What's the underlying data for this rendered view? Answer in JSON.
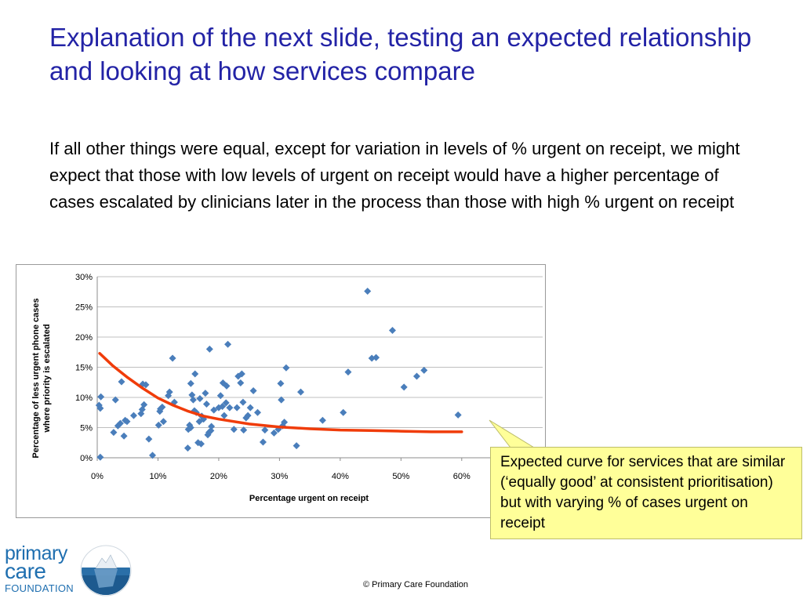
{
  "slide": {
    "title": "Explanation of the next slide, testing an expected relationship and looking at how services compare",
    "body": "If all other things were equal, except for variation in levels of % urgent on receipt, we might expect that those with low levels of urgent on receipt would have a higher percentage of cases escalated by clinicians later in the process than those with high % urgent on receipt",
    "callout": "Expected curve for services that are similar (‘equally good’ at consistent prioritisation) but with varying % of cases urgent on receipt",
    "copyright": "© Primary Care Foundation",
    "logo": {
      "line1": "primary",
      "line2": "care",
      "line3": "FOUNDATION",
      "colors": {
        "text": "#1f6fb0",
        "sea": "#2a6fa8"
      }
    },
    "colors": {
      "title": "#2323a6",
      "callout_bg": "#ffff99",
      "marker": "#4a7ebb",
      "curve": "#f03c0a"
    }
  },
  "chart_data": {
    "type": "scatter",
    "xlabel": "Percentage urgent on receipt",
    "ylabel": "Percentage of less urgent phone cases where priority is escalated",
    "xlim": [
      0,
      0.6
    ],
    "ylim": [
      0,
      0.3
    ],
    "x_ticks": [
      0,
      0.1,
      0.2,
      0.3,
      0.4,
      0.5,
      0.6
    ],
    "x_tick_labels": [
      "0%",
      "10%",
      "20%",
      "30%",
      "40%",
      "50%",
      "60%"
    ],
    "y_ticks": [
      0,
      0.05,
      0.1,
      0.15,
      0.2,
      0.25,
      0.3
    ],
    "y_tick_labels": [
      "0%",
      "5%",
      "10%",
      "15%",
      "20%",
      "25%",
      "30%"
    ],
    "grid": "horizontal",
    "legend": "none",
    "series": [
      {
        "type": "scatter",
        "marker": "diamond",
        "color": "#4a7ebb",
        "points": [
          [
            0.003,
            0.087
          ],
          [
            0.005,
            0.082
          ],
          [
            0.006,
            0.101
          ],
          [
            0.005,
            0.001
          ],
          [
            0.027,
            0.042
          ],
          [
            0.03,
            0.096
          ],
          [
            0.034,
            0.053
          ],
          [
            0.038,
            0.057
          ],
          [
            0.04,
            0.126
          ],
          [
            0.044,
            0.036
          ],
          [
            0.046,
            0.062
          ],
          [
            0.049,
            0.06
          ],
          [
            0.06,
            0.07
          ],
          [
            0.072,
            0.073
          ],
          [
            0.074,
            0.08
          ],
          [
            0.075,
            0.122
          ],
          [
            0.077,
            0.088
          ],
          [
            0.08,
            0.121
          ],
          [
            0.085,
            0.031
          ],
          [
            0.091,
            0.004
          ],
          [
            0.101,
            0.054
          ],
          [
            0.103,
            0.077
          ],
          [
            0.104,
            0.081
          ],
          [
            0.107,
            0.084
          ],
          [
            0.109,
            0.06
          ],
          [
            0.117,
            0.103
          ],
          [
            0.119,
            0.109
          ],
          [
            0.124,
            0.165
          ],
          [
            0.127,
            0.092
          ],
          [
            0.149,
            0.016
          ],
          [
            0.15,
            0.047
          ],
          [
            0.152,
            0.054
          ],
          [
            0.154,
            0.05
          ],
          [
            0.154,
            0.123
          ],
          [
            0.156,
            0.104
          ],
          [
            0.158,
            0.096
          ],
          [
            0.16,
            0.078
          ],
          [
            0.161,
            0.139
          ],
          [
            0.163,
            0.075
          ],
          [
            0.166,
            0.025
          ],
          [
            0.168,
            0.06
          ],
          [
            0.169,
            0.098
          ],
          [
            0.171,
            0.023
          ],
          [
            0.172,
            0.069
          ],
          [
            0.175,
            0.064
          ],
          [
            0.178,
            0.107
          ],
          [
            0.18,
            0.089
          ],
          [
            0.182,
            0.038
          ],
          [
            0.184,
            0.042
          ],
          [
            0.185,
            0.18
          ],
          [
            0.187,
            0.045
          ],
          [
            0.188,
            0.052
          ],
          [
            0.192,
            0.079
          ],
          [
            0.2,
            0.083
          ],
          [
            0.203,
            0.103
          ],
          [
            0.206,
            0.085
          ],
          [
            0.207,
            0.124
          ],
          [
            0.209,
            0.07
          ],
          [
            0.212,
            0.091
          ],
          [
            0.213,
            0.119
          ],
          [
            0.215,
            0.188
          ],
          [
            0.218,
            0.083
          ],
          [
            0.225,
            0.047
          ],
          [
            0.23,
            0.083
          ],
          [
            0.232,
            0.135
          ],
          [
            0.236,
            0.124
          ],
          [
            0.238,
            0.139
          ],
          [
            0.24,
            0.092
          ],
          [
            0.241,
            0.046
          ],
          [
            0.245,
            0.066
          ],
          [
            0.248,
            0.07
          ],
          [
            0.252,
            0.083
          ],
          [
            0.257,
            0.111
          ],
          [
            0.264,
            0.075
          ],
          [
            0.273,
            0.026
          ],
          [
            0.276,
            0.046
          ],
          [
            0.291,
            0.041
          ],
          [
            0.298,
            0.047
          ],
          [
            0.302,
            0.123
          ],
          [
            0.303,
            0.096
          ],
          [
            0.305,
            0.053
          ],
          [
            0.308,
            0.059
          ],
          [
            0.311,
            0.149
          ],
          [
            0.328,
            0.02
          ],
          [
            0.335,
            0.109
          ],
          [
            0.371,
            0.062
          ],
          [
            0.405,
            0.075
          ],
          [
            0.413,
            0.142
          ],
          [
            0.445,
            0.276
          ],
          [
            0.452,
            0.165
          ],
          [
            0.459,
            0.166
          ],
          [
            0.486,
            0.211
          ],
          [
            0.505,
            0.117
          ],
          [
            0.526,
            0.135
          ],
          [
            0.538,
            0.145
          ],
          [
            0.594,
            0.071
          ]
        ]
      },
      {
        "type": "line",
        "color": "#f03c0a",
        "points": [
          [
            0.004,
            0.173
          ],
          [
            0.025,
            0.153
          ],
          [
            0.05,
            0.133
          ],
          [
            0.075,
            0.115
          ],
          [
            0.1,
            0.099
          ],
          [
            0.125,
            0.087
          ],
          [
            0.15,
            0.077
          ],
          [
            0.175,
            0.069
          ],
          [
            0.2,
            0.064
          ],
          [
            0.25,
            0.056
          ],
          [
            0.3,
            0.051
          ],
          [
            0.35,
            0.048
          ],
          [
            0.4,
            0.046
          ],
          [
            0.45,
            0.045
          ],
          [
            0.5,
            0.044
          ],
          [
            0.55,
            0.043
          ],
          [
            0.6,
            0.043
          ]
        ]
      }
    ]
  }
}
